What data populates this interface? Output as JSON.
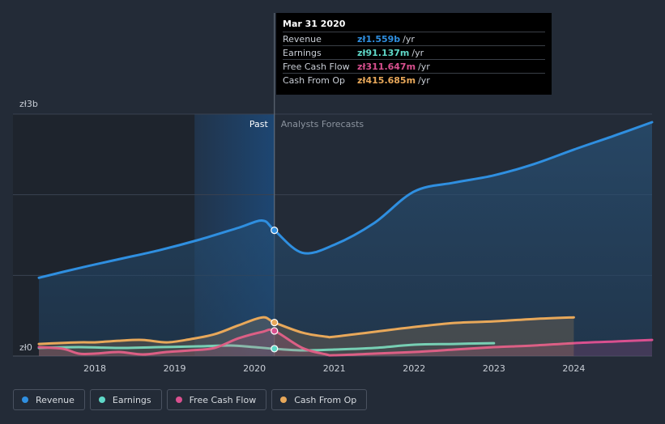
{
  "tooltip": {
    "date": "Mar 31 2020",
    "rows": [
      {
        "name": "Revenue",
        "value": "zł1.559b",
        "unit": "/yr",
        "color": "#2f8fe0"
      },
      {
        "name": "Earnings",
        "value": "zł91.137m",
        "unit": "/yr",
        "color": "#5fd8c8"
      },
      {
        "name": "Free Cash Flow",
        "value": "zł311.647m",
        "unit": "/yr",
        "color": "#d9508f"
      },
      {
        "name": "Cash From Op",
        "value": "zł415.685m",
        "unit": "/yr",
        "color": "#e8a85a"
      }
    ]
  },
  "labels": {
    "past": "Past",
    "forecast": "Analysts Forecasts"
  },
  "legend": [
    {
      "label": "Revenue",
      "color": "#2f8fe0"
    },
    {
      "label": "Earnings",
      "color": "#5fd8c8"
    },
    {
      "label": "Free Cash Flow",
      "color": "#d9508f"
    },
    {
      "label": "Cash From Op",
      "color": "#e8a85a"
    }
  ],
  "chart_data": {
    "type": "line",
    "y_tick_labels": [
      "zł0",
      "zł3b"
    ],
    "ylim": [
      0,
      3.0
    ],
    "y_unit": "zł billions per year",
    "xlim": [
      2017.3,
      2024.98
    ],
    "x_ticks": [
      2018,
      2019,
      2020,
      2021,
      2022,
      2023,
      2024
    ],
    "x_tick_labels": [
      "2018",
      "2019",
      "2020",
      "2021",
      "2022",
      "2023",
      "2024"
    ],
    "past_end": 2020.25,
    "highlight_start": 2019.25,
    "grid": true,
    "legend_position": "bottom-left",
    "series": [
      {
        "name": "Revenue",
        "color": "#2f8fe0",
        "fill": true,
        "x": [
          2017.3,
          2017.8,
          2018.3,
          2018.8,
          2019.3,
          2019.8,
          2020.1,
          2020.25,
          2020.6,
          2021.0,
          2021.5,
          2022.0,
          2022.5,
          2023.0,
          2023.5,
          2024.0,
          2024.5,
          2024.98
        ],
        "y": [
          0.97,
          1.09,
          1.2,
          1.31,
          1.44,
          1.59,
          1.68,
          1.559,
          1.28,
          1.38,
          1.65,
          2.04,
          2.15,
          2.24,
          2.38,
          2.56,
          2.73,
          2.9
        ]
      },
      {
        "name": "Earnings",
        "color": "#5fd8c8",
        "fill": false,
        "x": [
          2017.3,
          2017.8,
          2018.3,
          2018.8,
          2019.3,
          2019.7,
          2020.0,
          2020.25,
          2020.6,
          2021.0,
          2021.5,
          2022.0,
          2022.5,
          2023.0
        ],
        "y": [
          0.1,
          0.11,
          0.1,
          0.11,
          0.12,
          0.13,
          0.11,
          0.09,
          0.07,
          0.08,
          0.1,
          0.14,
          0.15,
          0.16
        ]
      },
      {
        "name": "Free Cash Flow",
        "color": "#d9508f",
        "fill": false,
        "x": [
          2017.3,
          2017.6,
          2017.8,
          2018.0,
          2018.3,
          2018.6,
          2018.9,
          2019.2,
          2019.5,
          2019.8,
          2020.1,
          2020.25,
          2020.6,
          2020.9,
          2021.0,
          2021.5,
          2022.0,
          2022.5,
          2023.0,
          2023.5,
          2024.0,
          2024.5,
          2024.98
        ],
        "y": [
          0.11,
          0.09,
          0.03,
          0.03,
          0.05,
          0.02,
          0.05,
          0.07,
          0.1,
          0.22,
          0.3,
          0.3116,
          0.1,
          0.02,
          0.01,
          0.03,
          0.05,
          0.08,
          0.11,
          0.13,
          0.16,
          0.18,
          0.2
        ]
      },
      {
        "name": "Cash From Op",
        "color": "#e8a85a",
        "fill": false,
        "x": [
          2017.3,
          2017.8,
          2018.0,
          2018.3,
          2018.6,
          2018.9,
          2019.2,
          2019.5,
          2019.8,
          2020.1,
          2020.25,
          2020.6,
          2020.9,
          2021.0,
          2021.5,
          2022.0,
          2022.5,
          2023.0,
          2023.5,
          2024.0
        ],
        "y": [
          0.15,
          0.17,
          0.17,
          0.19,
          0.2,
          0.17,
          0.21,
          0.27,
          0.38,
          0.48,
          0.4157,
          0.29,
          0.24,
          0.24,
          0.3,
          0.36,
          0.41,
          0.43,
          0.46,
          0.48
        ]
      }
    ],
    "highlight_points": [
      {
        "series": "Revenue",
        "x": 2020.25,
        "y": 1.559
      },
      {
        "series": "Cash From Op",
        "x": 2020.25,
        "y": 0.4157
      },
      {
        "series": "Free Cash Flow",
        "x": 2020.25,
        "y": 0.3116
      },
      {
        "series": "Earnings",
        "x": 2020.25,
        "y": 0.091
      }
    ]
  }
}
